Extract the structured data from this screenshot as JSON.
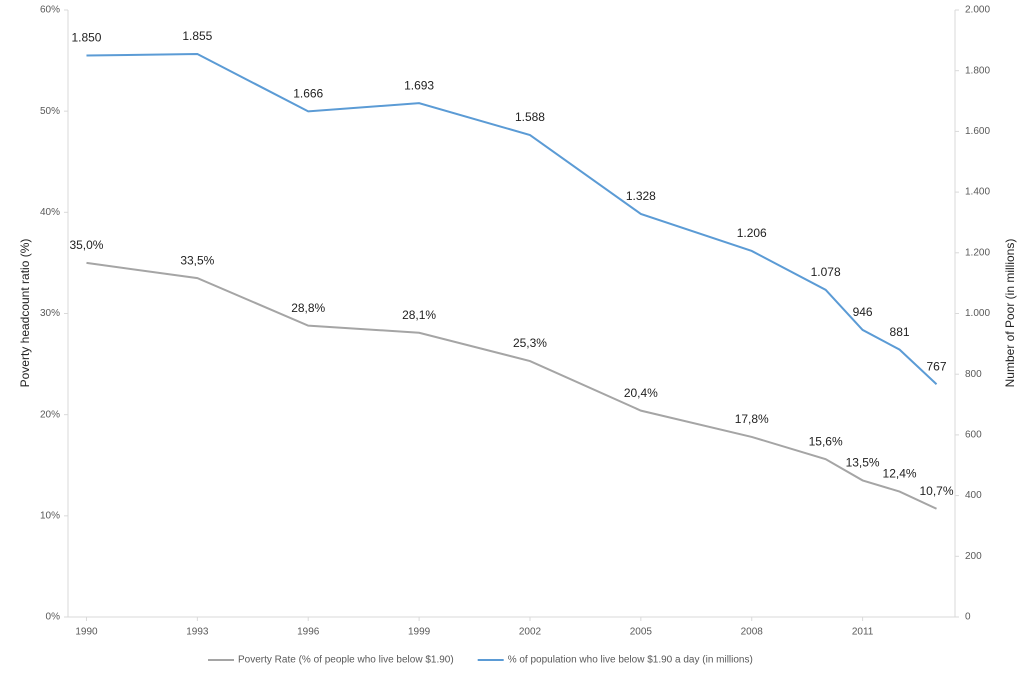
{
  "chart_data": {
    "type": "line",
    "x": [
      1990,
      1993,
      1996,
      1999,
      2002,
      2005,
      2008,
      2010,
      2011,
      2012,
      2013
    ],
    "xlim": [
      1989.5,
      2013.5
    ],
    "xticks": [
      1990,
      1993,
      1996,
      1999,
      2002,
      2005,
      2008,
      2011
    ],
    "ylabel": "Poverty headcount ratio (%)",
    "y2label": "Number of Poor (in millions)",
    "ylim": [
      0,
      60
    ],
    "yticks": [
      {
        "value": 0,
        "label": "0%"
      },
      {
        "value": 10,
        "label": "10%"
      },
      {
        "value": 20,
        "label": "20%"
      },
      {
        "value": 30,
        "label": "30%"
      },
      {
        "value": 40,
        "label": "40%"
      },
      {
        "value": 50,
        "label": "50%"
      },
      {
        "value": 60,
        "label": "60%"
      }
    ],
    "y2lim": [
      0,
      2000
    ],
    "y2ticks": [
      0,
      200,
      400,
      600,
      800,
      {
        "value": 1000,
        "label": "1.000"
      },
      {
        "value": 1200,
        "label": "1.200"
      },
      {
        "value": 1400,
        "label": "1.400"
      },
      {
        "value": 1600,
        "label": "1.600"
      },
      {
        "value": 1800,
        "label": "1.800"
      },
      {
        "value": 2000,
        "label": "2.000"
      }
    ],
    "legend": "bottom",
    "series": [
      {
        "name": "Poverty Rate (% of people who live below $1.90)",
        "color": "#a5a5a5",
        "axis": "y",
        "values": [
          35.0,
          33.5,
          28.8,
          28.1,
          25.3,
          20.4,
          17.8,
          15.6,
          13.5,
          12.4,
          10.7
        ],
        "value_labels": [
          "35,0%",
          "33,5%",
          "28,8%",
          "28,1%",
          "25,3%",
          "20,4%",
          "17,8%",
          "15,6%",
          "13,5%",
          "12,4%",
          "10,7%"
        ]
      },
      {
        "name": "% of population who live below $1.90 a day (in millions)",
        "color": "#5b9bd5",
        "axis": "y2",
        "values": [
          1850,
          1855,
          1666,
          1693,
          1588,
          1328,
          1206,
          1078,
          946,
          881,
          767
        ],
        "value_labels": [
          "1.850",
          "1.855",
          "1.666",
          "1.693",
          "1.588",
          "1.328",
          "1.206",
          "1.078",
          "946",
          "881",
          "767"
        ]
      }
    ]
  }
}
